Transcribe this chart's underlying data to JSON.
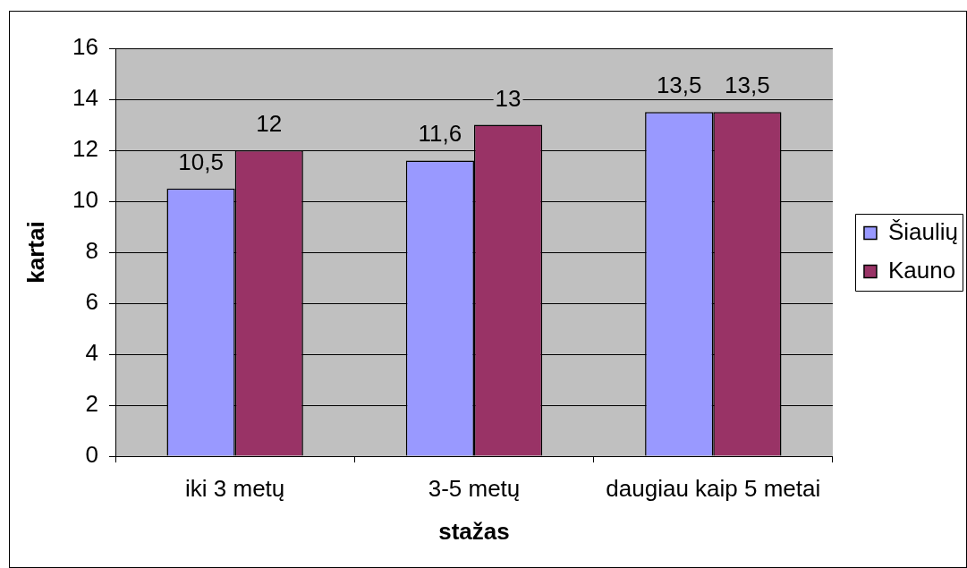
{
  "chart_data": {
    "type": "bar",
    "xlabel": "stažas",
    "ylabel": "kartai",
    "categories": [
      "iki 3 metų",
      "3-5 metų",
      "daugiau kaip 5 metai"
    ],
    "series": [
      {
        "name": "Šiaulių",
        "color": "#9999ff",
        "values": [
          10.5,
          11.6,
          13.5
        ],
        "value_labels": [
          "10,5",
          "11,6",
          "13,5"
        ]
      },
      {
        "name": "Kauno",
        "color": "#993366",
        "values": [
          12,
          13,
          13.5
        ],
        "value_labels": [
          "12",
          "13",
          "13,5"
        ]
      }
    ],
    "ylim": [
      0,
      16
    ],
    "yticks": [
      0,
      2,
      4,
      6,
      8,
      10,
      12,
      14,
      16
    ],
    "grid": "y",
    "legend": "right"
  }
}
